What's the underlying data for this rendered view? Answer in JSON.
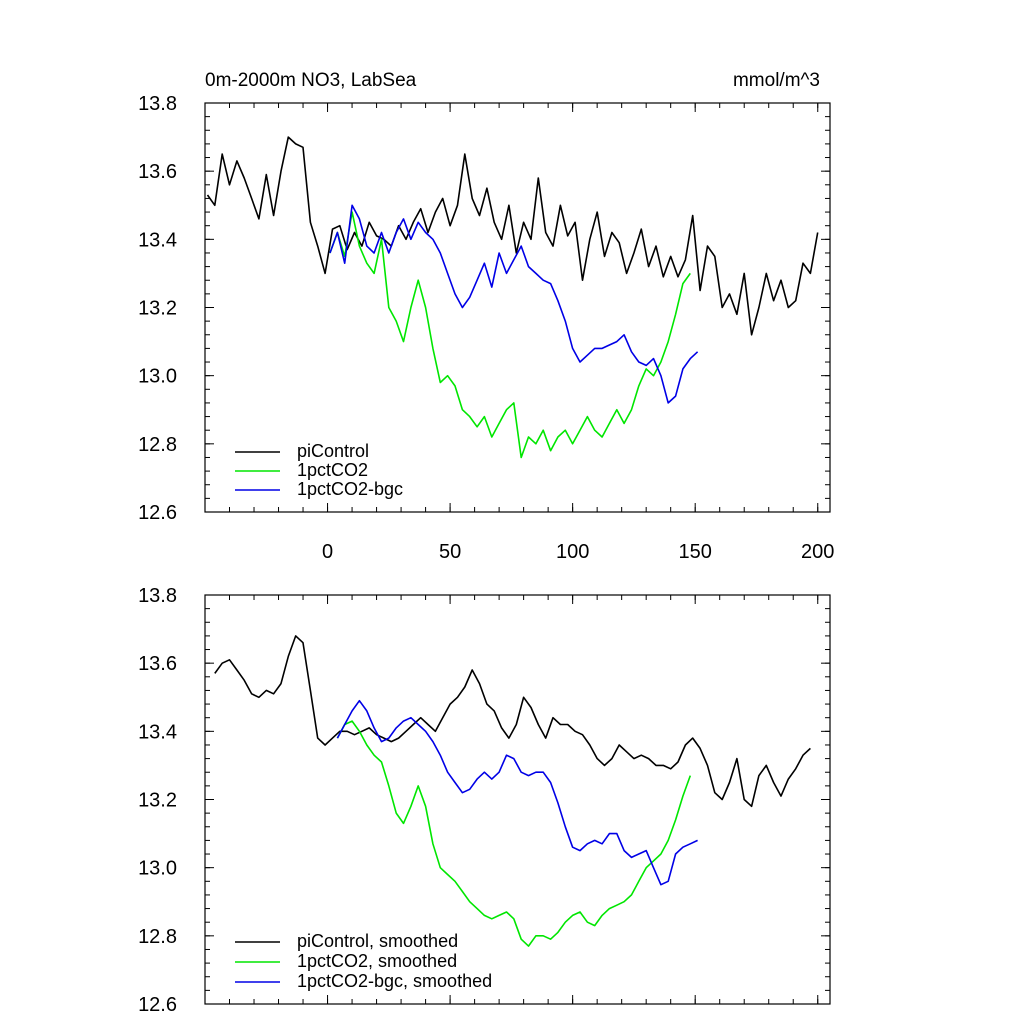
{
  "chart_data": [
    {
      "type": "line",
      "title": "0m-2000m NO3, LabSea",
      "units": "mmol/m^3",
      "xlim": [
        -50,
        205
      ],
      "ylim": [
        12.6,
        13.8
      ],
      "xticks": [
        0,
        50,
        100,
        150,
        200
      ],
      "xtick_labels": [
        "0",
        "50",
        "100",
        "150",
        "200"
      ],
      "yticks": [
        12.6,
        12.8,
        13.0,
        13.2,
        13.4,
        13.6,
        13.8
      ],
      "ytick_labels": [
        "12.6",
        "12.8",
        "13.0",
        "13.2",
        "13.4",
        "13.6",
        "13.8"
      ],
      "legend_position": "bottom-left",
      "series": [
        {
          "name": "piControl",
          "color": "#000000",
          "x": [
            -49,
            -46,
            -43,
            -40,
            -37,
            -34,
            -31,
            -28,
            -25,
            -22,
            -19,
            -16,
            -13,
            -10,
            -7,
            -4,
            -1,
            2,
            5,
            8,
            11,
            14,
            17,
            20,
            23,
            26,
            29,
            32,
            35,
            38,
            41,
            44,
            47,
            50,
            53,
            56,
            59,
            62,
            65,
            68,
            71,
            74,
            77,
            80,
            83,
            86,
            89,
            92,
            95,
            98,
            101,
            104,
            107,
            110,
            113,
            116,
            119,
            122,
            125,
            128,
            131,
            134,
            137,
            140,
            143,
            146,
            149,
            152,
            155,
            158,
            161,
            164,
            167,
            170,
            173,
            176,
            179,
            182,
            185,
            188,
            191,
            194,
            197,
            200
          ],
          "values": [
            13.53,
            13.5,
            13.65,
            13.56,
            13.63,
            13.58,
            13.52,
            13.46,
            13.59,
            13.47,
            13.6,
            13.7,
            13.68,
            13.67,
            13.45,
            13.38,
            13.3,
            13.43,
            13.44,
            13.37,
            13.42,
            13.38,
            13.45,
            13.41,
            13.4,
            13.38,
            13.44,
            13.4,
            13.45,
            13.49,
            13.42,
            13.48,
            13.52,
            13.44,
            13.5,
            13.65,
            13.52,
            13.47,
            13.55,
            13.45,
            13.4,
            13.5,
            13.36,
            13.45,
            13.4,
            13.58,
            13.42,
            13.38,
            13.5,
            13.41,
            13.45,
            13.28,
            13.4,
            13.48,
            13.35,
            13.42,
            13.39,
            13.3,
            13.36,
            13.43,
            13.32,
            13.38,
            13.29,
            13.35,
            13.29,
            13.34,
            13.47,
            13.25,
            13.38,
            13.35,
            13.2,
            13.24,
            13.18,
            13.3,
            13.12,
            13.2,
            13.3,
            13.22,
            13.28,
            13.2,
            13.22,
            13.33,
            13.3,
            13.42
          ]
        },
        {
          "name": "1pctCO2",
          "color": "#00e600",
          "x": [
            1,
            4,
            7,
            10,
            13,
            16,
            19,
            22,
            25,
            28,
            31,
            34,
            37,
            40,
            43,
            46,
            49,
            52,
            55,
            58,
            61,
            64,
            67,
            70,
            73,
            76,
            79,
            82,
            85,
            88,
            91,
            94,
            97,
            100,
            103,
            106,
            109,
            112,
            115,
            118,
            121,
            124,
            127,
            130,
            133,
            136,
            139,
            142,
            145,
            148
          ],
          "values": [
            13.36,
            13.42,
            13.35,
            13.48,
            13.38,
            13.33,
            13.3,
            13.4,
            13.2,
            13.16,
            13.1,
            13.2,
            13.28,
            13.2,
            13.08,
            12.98,
            13.0,
            12.97,
            12.9,
            12.88,
            12.85,
            12.88,
            12.82,
            12.86,
            12.9,
            12.92,
            12.76,
            12.82,
            12.8,
            12.84,
            12.78,
            12.82,
            12.84,
            12.8,
            12.84,
            12.88,
            12.84,
            12.82,
            12.86,
            12.9,
            12.86,
            12.9,
            12.97,
            13.02,
            13.0,
            13.04,
            13.1,
            13.18,
            13.27,
            13.3
          ]
        },
        {
          "name": "1pctCO2-bgc",
          "color": "#0000e6",
          "x": [
            1,
            4,
            7,
            10,
            13,
            16,
            19,
            22,
            25,
            28,
            31,
            34,
            37,
            40,
            43,
            46,
            49,
            52,
            55,
            58,
            61,
            64,
            67,
            70,
            73,
            76,
            79,
            82,
            85,
            88,
            91,
            94,
            97,
            100,
            103,
            106,
            109,
            112,
            115,
            118,
            121,
            124,
            127,
            130,
            133,
            136,
            139,
            142,
            145,
            148,
            151
          ],
          "values": [
            13.36,
            13.42,
            13.33,
            13.5,
            13.46,
            13.38,
            13.36,
            13.42,
            13.36,
            13.42,
            13.46,
            13.4,
            13.45,
            13.42,
            13.4,
            13.36,
            13.3,
            13.24,
            13.2,
            13.23,
            13.28,
            13.33,
            13.26,
            13.36,
            13.3,
            13.34,
            13.38,
            13.32,
            13.3,
            13.28,
            13.27,
            13.22,
            13.16,
            13.08,
            13.04,
            13.06,
            13.08,
            13.08,
            13.09,
            13.1,
            13.12,
            13.07,
            13.04,
            13.03,
            13.05,
            13.0,
            12.92,
            12.94,
            13.02,
            13.05,
            13.07
          ]
        }
      ]
    },
    {
      "type": "line",
      "title": "",
      "units": "",
      "xlim": [
        -50,
        205
      ],
      "ylim": [
        12.6,
        13.8
      ],
      "xticks": [
        0,
        50,
        100,
        150,
        200
      ],
      "xtick_labels": [],
      "yticks": [
        12.6,
        12.8,
        13.0,
        13.2,
        13.4,
        13.6,
        13.8
      ],
      "ytick_labels": [
        "12.6",
        "12.8",
        "13.0",
        "13.2",
        "13.4",
        "13.6",
        "13.8"
      ],
      "legend_position": "bottom-left",
      "series": [
        {
          "name": "piControl, smoothed",
          "color": "#000000",
          "x": [
            -46,
            -43,
            -40,
            -37,
            -34,
            -31,
            -28,
            -25,
            -22,
            -19,
            -16,
            -13,
            -10,
            -7,
            -4,
            -1,
            2,
            5,
            8,
            11,
            14,
            17,
            20,
            23,
            26,
            29,
            32,
            35,
            38,
            41,
            44,
            47,
            50,
            53,
            56,
            59,
            62,
            65,
            68,
            71,
            74,
            77,
            80,
            83,
            86,
            89,
            92,
            95,
            98,
            101,
            104,
            107,
            110,
            113,
            116,
            119,
            122,
            125,
            128,
            131,
            134,
            137,
            140,
            143,
            146,
            149,
            152,
            155,
            158,
            161,
            164,
            167,
            170,
            173,
            176,
            179,
            182,
            185,
            188,
            191,
            194,
            197
          ],
          "values": [
            13.57,
            13.6,
            13.61,
            13.58,
            13.55,
            13.51,
            13.5,
            13.52,
            13.51,
            13.54,
            13.62,
            13.68,
            13.66,
            13.52,
            13.38,
            13.36,
            13.38,
            13.4,
            13.4,
            13.39,
            13.4,
            13.41,
            13.39,
            13.38,
            13.37,
            13.38,
            13.4,
            13.42,
            13.44,
            13.42,
            13.4,
            13.44,
            13.48,
            13.5,
            13.53,
            13.58,
            13.54,
            13.48,
            13.46,
            13.41,
            13.38,
            13.42,
            13.5,
            13.47,
            13.42,
            13.38,
            13.44,
            13.42,
            13.42,
            13.4,
            13.39,
            13.36,
            13.32,
            13.3,
            13.32,
            13.36,
            13.34,
            13.32,
            13.33,
            13.32,
            13.3,
            13.3,
            13.29,
            13.31,
            13.36,
            13.38,
            13.35,
            13.3,
            13.22,
            13.2,
            13.25,
            13.32,
            13.2,
            13.18,
            13.27,
            13.3,
            13.25,
            13.21,
            13.26,
            13.29,
            13.33,
            13.35
          ]
        },
        {
          "name": "1pctCO2, smoothed",
          "color": "#00e600",
          "x": [
            4,
            7,
            10,
            13,
            16,
            19,
            22,
            25,
            28,
            31,
            34,
            37,
            40,
            43,
            46,
            49,
            52,
            55,
            58,
            61,
            64,
            67,
            70,
            73,
            76,
            79,
            82,
            85,
            88,
            91,
            94,
            97,
            100,
            103,
            106,
            109,
            112,
            115,
            118,
            121,
            124,
            127,
            130,
            133,
            136,
            139,
            142,
            145,
            148
          ],
          "values": [
            13.38,
            13.42,
            13.43,
            13.4,
            13.36,
            13.33,
            13.31,
            13.24,
            13.16,
            13.13,
            13.18,
            13.24,
            13.18,
            13.07,
            13.0,
            12.98,
            12.96,
            12.93,
            12.9,
            12.88,
            12.86,
            12.85,
            12.86,
            12.87,
            12.85,
            12.79,
            12.77,
            12.8,
            12.8,
            12.79,
            12.81,
            12.84,
            12.86,
            12.87,
            12.84,
            12.83,
            12.86,
            12.88,
            12.89,
            12.9,
            12.92,
            12.96,
            13.0,
            13.02,
            13.04,
            13.08,
            13.14,
            13.21,
            13.27
          ]
        },
        {
          "name": "1pctCO2-bgc, smoothed",
          "color": "#0000e6",
          "x": [
            4,
            7,
            10,
            13,
            16,
            19,
            22,
            25,
            28,
            31,
            34,
            37,
            40,
            43,
            46,
            49,
            52,
            55,
            58,
            61,
            64,
            67,
            70,
            73,
            76,
            79,
            82,
            85,
            88,
            91,
            94,
            97,
            100,
            103,
            106,
            109,
            112,
            115,
            118,
            121,
            124,
            127,
            130,
            133,
            136,
            139,
            142,
            145,
            148,
            151
          ],
          "values": [
            13.38,
            13.42,
            13.46,
            13.49,
            13.46,
            13.41,
            13.37,
            13.38,
            13.41,
            13.43,
            13.44,
            13.42,
            13.4,
            13.37,
            13.33,
            13.28,
            13.25,
            13.22,
            13.23,
            13.26,
            13.28,
            13.26,
            13.28,
            13.33,
            13.32,
            13.28,
            13.27,
            13.28,
            13.28,
            13.25,
            13.19,
            13.12,
            13.06,
            13.05,
            13.07,
            13.08,
            13.07,
            13.1,
            13.1,
            13.05,
            13.03,
            13.04,
            13.05,
            13.0,
            12.95,
            12.96,
            13.04,
            13.06,
            13.07,
            13.08
          ]
        }
      ]
    }
  ]
}
